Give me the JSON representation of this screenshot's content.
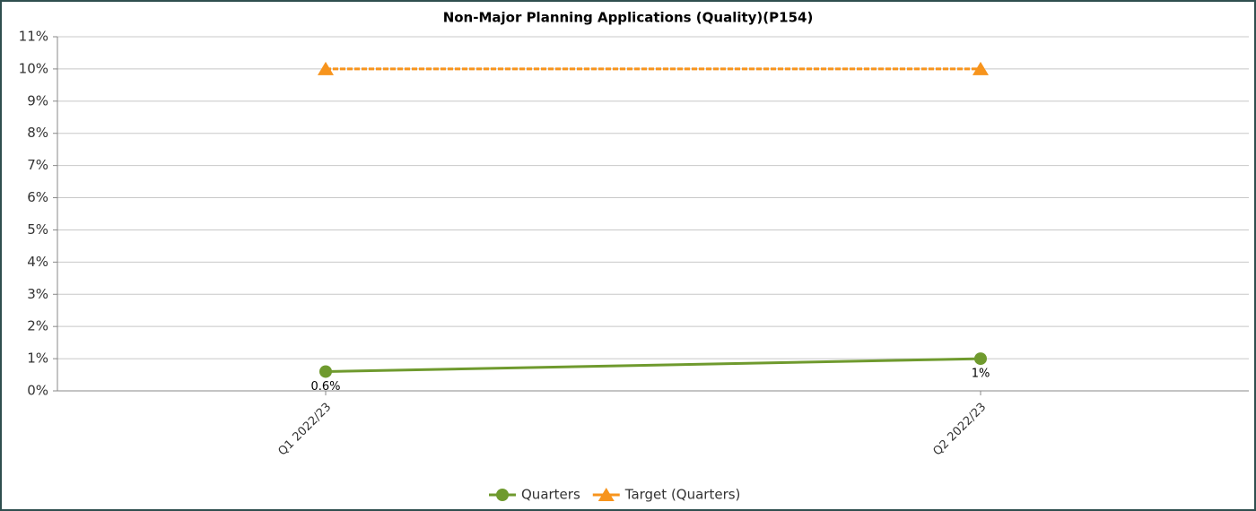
{
  "chart_data": {
    "type": "line",
    "title": "Non-Major Planning Applications (Quality)(P154)",
    "categories": [
      "Q1 2022/23",
      "Q2 2022/23"
    ],
    "series": [
      {
        "name": "Quarters",
        "color": "#6f9a2e",
        "values": [
          0.6,
          1
        ],
        "value_labels": [
          "0.6%",
          "1%"
        ],
        "marker": "circle"
      },
      {
        "name": "Target (Quarters)",
        "color": "#f7941d",
        "values": [
          10,
          10
        ],
        "marker": "triangle",
        "dashed": true
      }
    ],
    "ylim": [
      0,
      11
    ],
    "yticks": [
      {
        "value": 0,
        "label": "0%"
      },
      {
        "value": 1,
        "label": "1%"
      },
      {
        "value": 2,
        "label": "2%"
      },
      {
        "value": 3,
        "label": "3%"
      },
      {
        "value": 4,
        "label": "4%"
      },
      {
        "value": 5,
        "label": "5%"
      },
      {
        "value": 6,
        "label": "6%"
      },
      {
        "value": 7,
        "label": "7%"
      },
      {
        "value": 8,
        "label": "8%"
      },
      {
        "value": 9,
        "label": "9%"
      },
      {
        "value": 10,
        "label": "10%"
      },
      {
        "value": 11,
        "label": "11%"
      }
    ],
    "grid": true,
    "legend": "bottom"
  }
}
